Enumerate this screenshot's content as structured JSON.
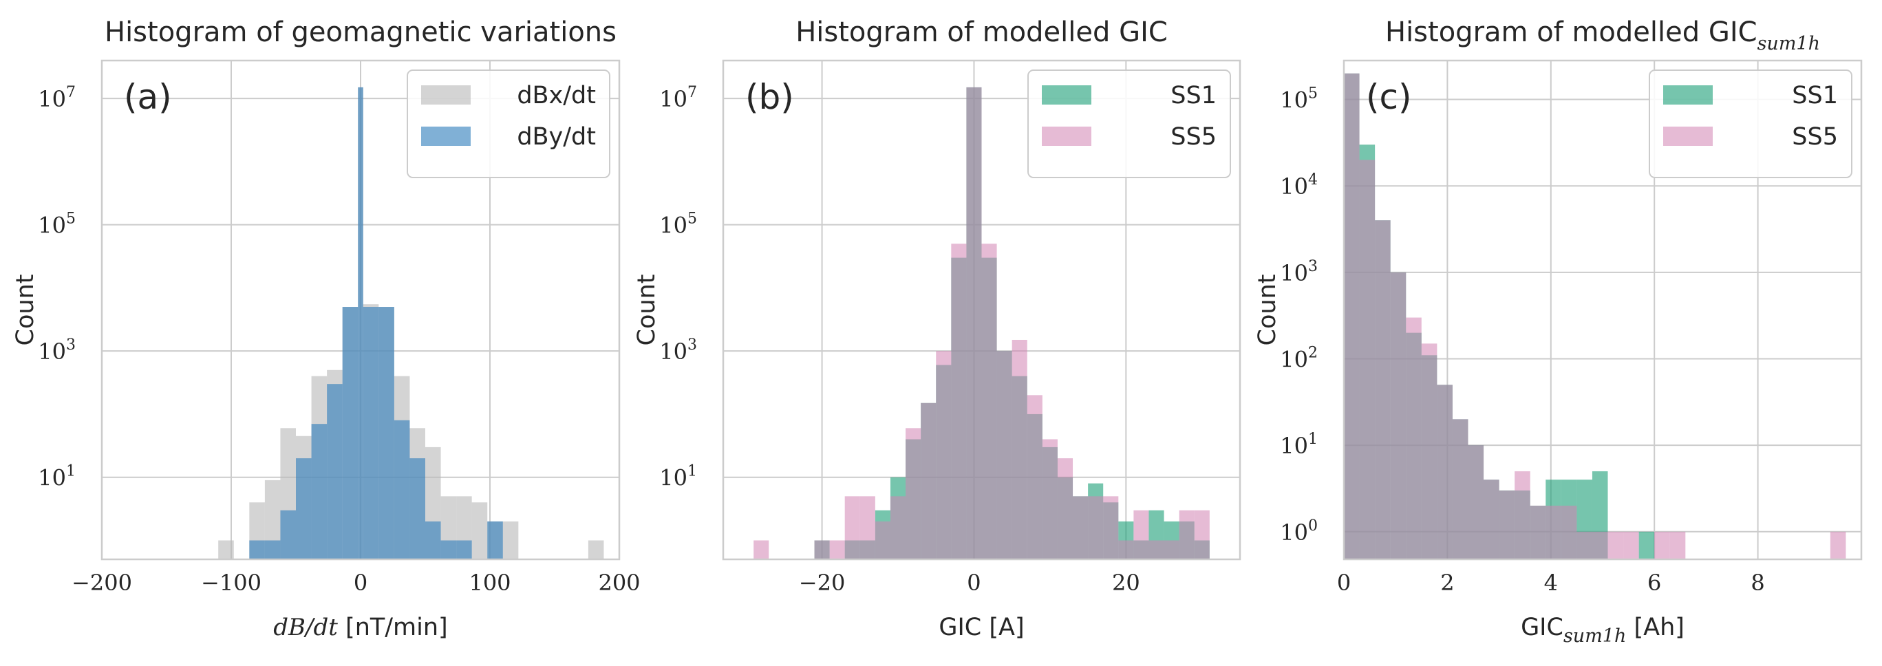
{
  "chart_data": [
    {
      "type": "histogram",
      "panel_letter": "(a)",
      "title": "Histogram of geomagnetic variations",
      "xlabel_math": "dB/dt",
      "xlabel_unit": " [nT/min]",
      "ylabel": "Count",
      "xlim": [
        -200,
        200
      ],
      "ylim_exp": [
        -0.3,
        7.6
      ],
      "yscale": "log",
      "grid": true,
      "legend_position": "top-right",
      "xticks": [
        {
          "v": -200,
          "label": "−200"
        },
        {
          "v": -100,
          "label": "−100"
        },
        {
          "v": 0,
          "label": "0"
        },
        {
          "v": 100,
          "label": "100"
        },
        {
          "v": 200,
          "label": "200"
        }
      ],
      "yticks": [
        {
          "exp": 1,
          "base": "10",
          "sup": "1"
        },
        {
          "exp": 3,
          "base": "10",
          "sup": "3"
        },
        {
          "exp": 5,
          "base": "10",
          "sup": "5"
        },
        {
          "exp": 7,
          "base": "10",
          "sup": "7"
        }
      ],
      "series": [
        {
          "name": "dBx/dt",
          "color": "#b8b8b8",
          "opacity": 0.6,
          "bins": [
            [
              -110,
              -98,
              1
            ],
            [
              -98,
              -86,
              0
            ],
            [
              -86,
              -74,
              4
            ],
            [
              -74,
              -62,
              9
            ],
            [
              -62,
              -50,
              60
            ],
            [
              -50,
              -38,
              45
            ],
            [
              -38,
              -26,
              400
            ],
            [
              -26,
              -14,
              500
            ],
            [
              -14,
              -2,
              5000
            ],
            [
              -2,
              2,
              15000000
            ],
            [
              2,
              14,
              5500
            ],
            [
              14,
              26,
              5000
            ],
            [
              26,
              38,
              400
            ],
            [
              38,
              50,
              60
            ],
            [
              50,
              62,
              30
            ],
            [
              62,
              74,
              5
            ],
            [
              74,
              86,
              5
            ],
            [
              86,
              98,
              4
            ],
            [
              98,
              110,
              2
            ],
            [
              110,
              122,
              2
            ],
            [
              176,
              188,
              1
            ]
          ]
        },
        {
          "name": "dBy/dt",
          "color": "#2b7bba",
          "opacity": 0.6,
          "bins": [
            [
              -86,
              -74,
              1
            ],
            [
              -74,
              -62,
              1
            ],
            [
              -62,
              -50,
              3
            ],
            [
              -50,
              -38,
              20
            ],
            [
              -38,
              -26,
              70
            ],
            [
              -26,
              -14,
              300
            ],
            [
              -14,
              -2,
              5000
            ],
            [
              -2,
              2,
              15000000
            ],
            [
              2,
              14,
              5000
            ],
            [
              14,
              26,
              5000
            ],
            [
              26,
              38,
              80
            ],
            [
              38,
              50,
              20
            ],
            [
              50,
              62,
              2
            ],
            [
              62,
              74,
              1
            ],
            [
              74,
              86,
              1
            ],
            [
              98,
              110,
              2
            ]
          ]
        }
      ]
    },
    {
      "type": "histogram",
      "panel_letter": "(b)",
      "title": "Histogram of modelled GIC",
      "xlabel": "GIC [A]",
      "ylabel": "Count",
      "xlim": [
        -33,
        35
      ],
      "ylim_exp": [
        -0.3,
        7.6
      ],
      "yscale": "log",
      "grid": true,
      "legend_position": "top-right",
      "xticks": [
        {
          "v": -20,
          "label": "−20"
        },
        {
          "v": 0,
          "label": "0"
        },
        {
          "v": 20,
          "label": "20"
        }
      ],
      "yticks": [
        {
          "exp": 1,
          "base": "10",
          "sup": "1"
        },
        {
          "exp": 3,
          "base": "10",
          "sup": "3"
        },
        {
          "exp": 5,
          "base": "10",
          "sup": "5"
        },
        {
          "exp": 7,
          "base": "10",
          "sup": "7"
        }
      ],
      "series": [
        {
          "name": "SS1",
          "color": "#1b9e77",
          "opacity": 0.6,
          "bins": [
            [
              -21,
              -19,
              1
            ],
            [
              -17,
              -15,
              1
            ],
            [
              -15,
              -13,
              1
            ],
            [
              -13,
              -11,
              3
            ],
            [
              -11,
              -9,
              10
            ],
            [
              -9,
              -7,
              40
            ],
            [
              -7,
              -5,
              150
            ],
            [
              -5,
              -3,
              600
            ],
            [
              -3,
              -1,
              30000
            ],
            [
              -1,
              1,
              15000000
            ],
            [
              1,
              3,
              30000
            ],
            [
              3,
              5,
              1000
            ],
            [
              5,
              7,
              400
            ],
            [
              7,
              9,
              100
            ],
            [
              9,
              11,
              30
            ],
            [
              11,
              13,
              10
            ],
            [
              13,
              15,
              5
            ],
            [
              15,
              17,
              8
            ],
            [
              17,
              19,
              4
            ],
            [
              19,
              21,
              2
            ],
            [
              21,
              23,
              1
            ],
            [
              23,
              25,
              3
            ],
            [
              25,
              27,
              2
            ],
            [
              27,
              29,
              2
            ],
            [
              29,
              31,
              1
            ]
          ]
        },
        {
          "name": "SS5",
          "color": "#d183b3",
          "opacity": 0.55,
          "bins": [
            [
              -29,
              -27,
              1
            ],
            [
              -21,
              -19,
              1
            ],
            [
              -19,
              -17,
              1
            ],
            [
              -17,
              -15,
              5
            ],
            [
              -15,
              -13,
              5
            ],
            [
              -13,
              -11,
              2
            ],
            [
              -11,
              -9,
              5
            ],
            [
              -9,
              -7,
              60
            ],
            [
              -7,
              -5,
              150
            ],
            [
              -5,
              -3,
              1000
            ],
            [
              -3,
              -1,
              50000
            ],
            [
              -1,
              1,
              15000000
            ],
            [
              1,
              3,
              50000
            ],
            [
              3,
              5,
              1000
            ],
            [
              5,
              7,
              1500
            ],
            [
              7,
              9,
              200
            ],
            [
              9,
              11,
              40
            ],
            [
              11,
              13,
              20
            ],
            [
              13,
              15,
              5
            ],
            [
              15,
              17,
              5
            ],
            [
              17,
              19,
              5
            ],
            [
              19,
              21,
              1
            ],
            [
              21,
              23,
              3
            ],
            [
              23,
              25,
              1
            ],
            [
              25,
              27,
              1
            ],
            [
              27,
              29,
              3
            ],
            [
              29,
              31,
              3
            ]
          ]
        }
      ]
    },
    {
      "type": "histogram",
      "panel_letter": "(c)",
      "title": "Histogram of modelled GIC",
      "title_sub": "sum1h",
      "xlabel": "GIC",
      "xlabel_sub": "sum1h",
      "xlabel_unit": " [Ah]",
      "ylabel": "Count",
      "xlim": [
        0,
        10
      ],
      "ylim_exp": [
        -0.32,
        5.45
      ],
      "yscale": "log",
      "grid": true,
      "legend_position": "top-right",
      "xticks": [
        {
          "v": 0,
          "label": "0"
        },
        {
          "v": 2,
          "label": "2"
        },
        {
          "v": 4,
          "label": "4"
        },
        {
          "v": 6,
          "label": "6"
        },
        {
          "v": 8,
          "label": "8"
        }
      ],
      "yticks": [
        {
          "exp": 0,
          "base": "10",
          "sup": "0"
        },
        {
          "exp": 1,
          "base": "10",
          "sup": "1"
        },
        {
          "exp": 2,
          "base": "10",
          "sup": "2"
        },
        {
          "exp": 3,
          "base": "10",
          "sup": "3"
        },
        {
          "exp": 4,
          "base": "10",
          "sup": "4"
        },
        {
          "exp": 5,
          "base": "10",
          "sup": "5"
        }
      ],
      "series": [
        {
          "name": "SS1",
          "color": "#1b9e77",
          "opacity": 0.6,
          "bins": [
            [
              0,
              0.3,
              200000
            ],
            [
              0.3,
              0.6,
              30000
            ],
            [
              0.6,
              0.9,
              4000
            ],
            [
              0.9,
              1.2,
              1000
            ],
            [
              1.2,
              1.5,
              200
            ],
            [
              1.5,
              1.8,
              110
            ],
            [
              1.8,
              2.1,
              50
            ],
            [
              2.1,
              2.4,
              20
            ],
            [
              2.4,
              2.7,
              10
            ],
            [
              2.7,
              3.0,
              4
            ],
            [
              3.0,
              3.3,
              3
            ],
            [
              3.3,
              3.6,
              3
            ],
            [
              3.6,
              3.9,
              2
            ],
            [
              3.9,
              4.2,
              4
            ],
            [
              4.2,
              4.5,
              4
            ],
            [
              4.5,
              4.8,
              4
            ],
            [
              4.8,
              5.1,
              5
            ],
            [
              5.7,
              6.0,
              1
            ]
          ]
        },
        {
          "name": "SS5",
          "color": "#d183b3",
          "opacity": 0.55,
          "bins": [
            [
              0,
              0.3,
              200000
            ],
            [
              0.3,
              0.6,
              20000
            ],
            [
              0.6,
              0.9,
              4000
            ],
            [
              0.9,
              1.2,
              1000
            ],
            [
              1.2,
              1.5,
              300
            ],
            [
              1.5,
              1.8,
              150
            ],
            [
              1.8,
              2.1,
              50
            ],
            [
              2.1,
              2.4,
              20
            ],
            [
              2.4,
              2.7,
              10
            ],
            [
              2.7,
              3.0,
              4
            ],
            [
              3.0,
              3.3,
              3
            ],
            [
              3.3,
              3.6,
              5
            ],
            [
              3.6,
              3.9,
              2
            ],
            [
              3.9,
              4.2,
              2
            ],
            [
              4.2,
              4.5,
              2
            ],
            [
              4.5,
              4.8,
              1
            ],
            [
              4.8,
              5.1,
              1
            ],
            [
              5.1,
              5.4,
              1
            ],
            [
              5.4,
              5.7,
              1
            ],
            [
              6.0,
              6.3,
              1
            ],
            [
              6.3,
              6.6,
              1
            ],
            [
              9.4,
              9.7,
              1
            ]
          ]
        }
      ]
    }
  ]
}
